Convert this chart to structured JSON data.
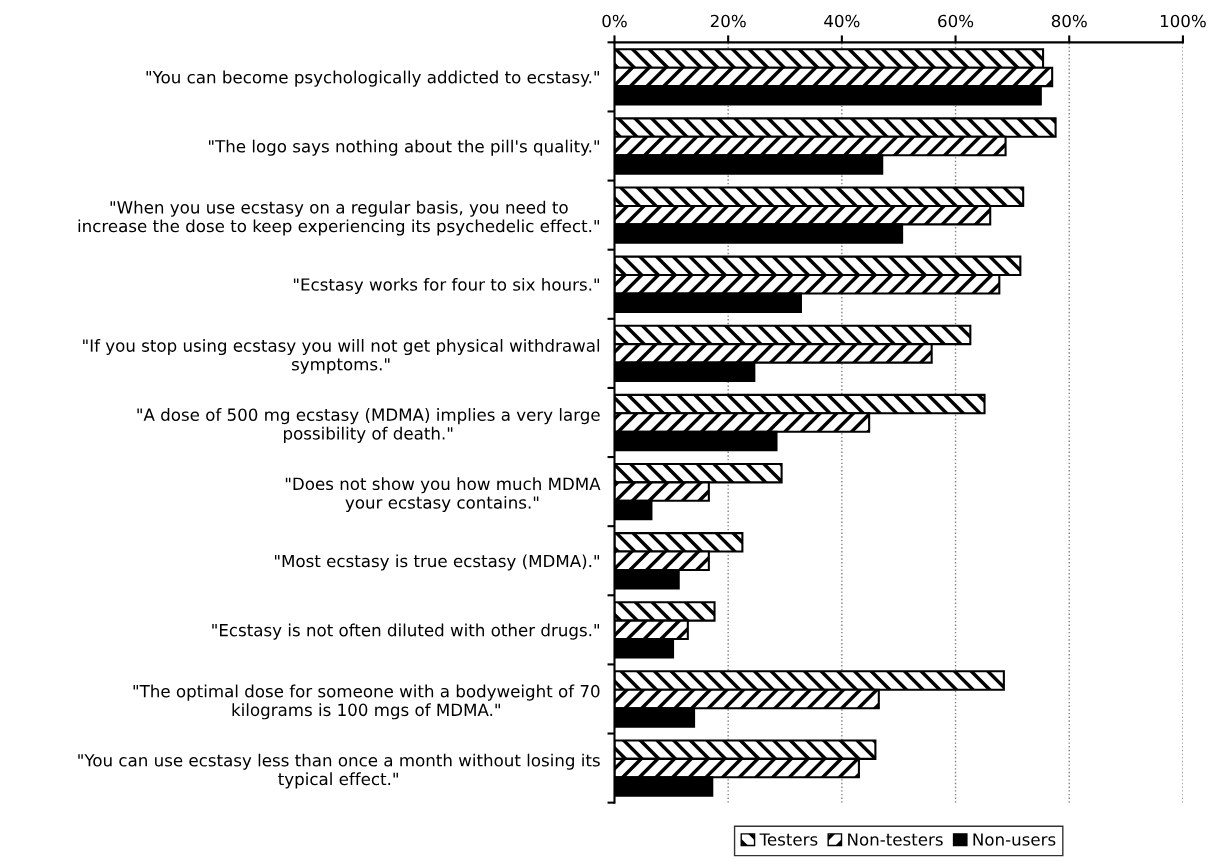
{
  "chart_data": {
    "type": "bar",
    "orientation": "horizontal",
    "categories": [
      "\"You can become psychologically addicted to ecstasy.\"",
      "\"The logo says nothing about the pill's quality.\"",
      "\"When you use ecstasy on a regular basis, you need to\nincrease the dose to keep experiencing its psychedelic effect.\"",
      "\"Ecstasy works for four to six hours.\"",
      "\"If you stop using ecstasy you will not get physical withdrawal\nsymptoms.\"",
      "\"A dose of 500 mg ecstasy (MDMA) implies a very large\npossibility of death.\"",
      "\"Does not show you how much MDMA\nyour ecstasy contains.\"",
      "\"Most ecstasy is true ecstasy (MDMA).\"",
      "\"Ecstasy is not often diluted with other drugs.\"",
      "\"The optimal dose for someone with a bodyweight of 70\nkilograms is 100 mgs of MDMA.\"",
      "\"You can use ecstasy less than once a month without losing its\ntypical effect.\""
    ],
    "series": [
      {
        "name": "Testers",
        "color": "#000000",
        "values": [
          75.4,
          77.6,
          71.9,
          71.4,
          62.6,
          65.1,
          29.4,
          22.5,
          17.6,
          68.5,
          45.9
        ]
      },
      {
        "name": "Non-testers",
        "color": "#000000",
        "values": [
          77.0,
          68.8,
          66.1,
          67.7,
          55.8,
          44.8,
          16.6,
          16.6,
          12.9,
          46.5,
          43.0
        ]
      },
      {
        "name": "Non-users",
        "color": "#000000",
        "values": [
          75.0,
          47.1,
          50.6,
          32.8,
          24.6,
          28.5,
          6.5,
          11.3,
          10.3,
          14.0,
          17.2
        ]
      }
    ],
    "xlim": [
      0,
      100
    ],
    "xticks": [
      {
        "value": 0,
        "label": "0%"
      },
      {
        "value": 20,
        "label": "20%"
      },
      {
        "value": 40,
        "label": "40%"
      },
      {
        "value": 60,
        "label": "60%"
      },
      {
        "value": 80,
        "label": "80%"
      },
      {
        "value": 100,
        "label": "100%"
      }
    ],
    "grid": "x",
    "legend": "bottom"
  }
}
